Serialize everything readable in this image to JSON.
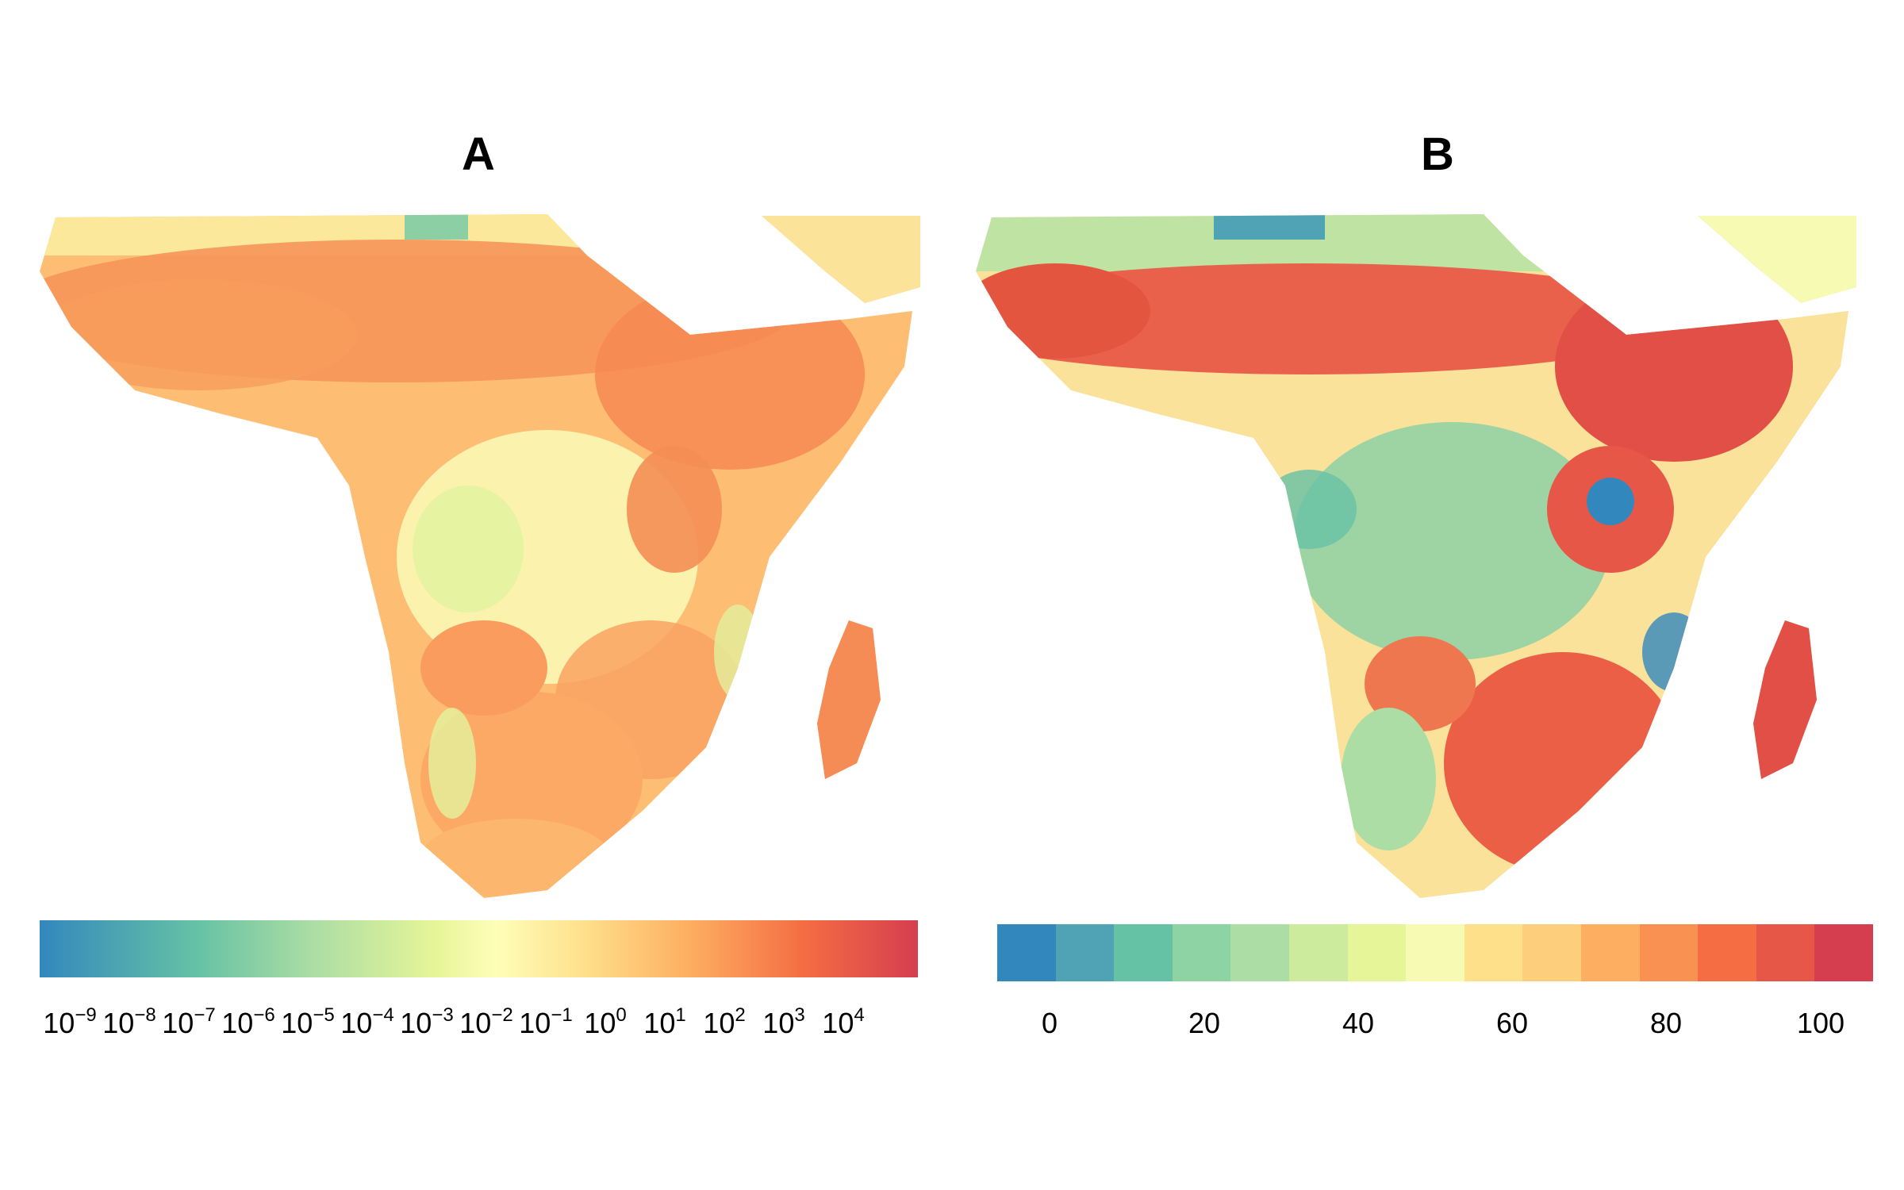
{
  "panels": [
    {
      "title": "A",
      "legend_type": "continuous",
      "ticks": [
        {
          "base": "10",
          "exp": "−9"
        },
        {
          "base": "10",
          "exp": "−8"
        },
        {
          "base": "10",
          "exp": "−7"
        },
        {
          "base": "10",
          "exp": "−6"
        },
        {
          "base": "10",
          "exp": "−5"
        },
        {
          "base": "10",
          "exp": "−4"
        },
        {
          "base": "10",
          "exp": "−3"
        },
        {
          "base": "10",
          "exp": "−2"
        },
        {
          "base": "10",
          "exp": "−1"
        },
        {
          "base": "10",
          "exp": "0"
        },
        {
          "base": "10",
          "exp": "1"
        },
        {
          "base": "10",
          "exp": "2"
        },
        {
          "base": "10",
          "exp": "3"
        },
        {
          "base": "10",
          "exp": "4"
        }
      ],
      "palette": [
        "#3288bd",
        "#66c2a5",
        "#abdda4",
        "#e6f598",
        "#fefeb8",
        "#fee08b",
        "#fdae61",
        "#f46d43",
        "#d53e4f"
      ]
    },
    {
      "title": "B",
      "legend_type": "binned",
      "ticks": [
        "0",
        "20",
        "40",
        "60",
        "80",
        "100"
      ],
      "bins": [
        "#3288bd",
        "#4fa3b4",
        "#66c2a5",
        "#8ed3a3",
        "#abdda4",
        "#cdeb9d",
        "#e6f598",
        "#f7fab2",
        "#fee08b",
        "#fdce7c",
        "#fdae61",
        "#f99153",
        "#f46d43",
        "#e65748",
        "#d53e4f"
      ]
    }
  ]
}
